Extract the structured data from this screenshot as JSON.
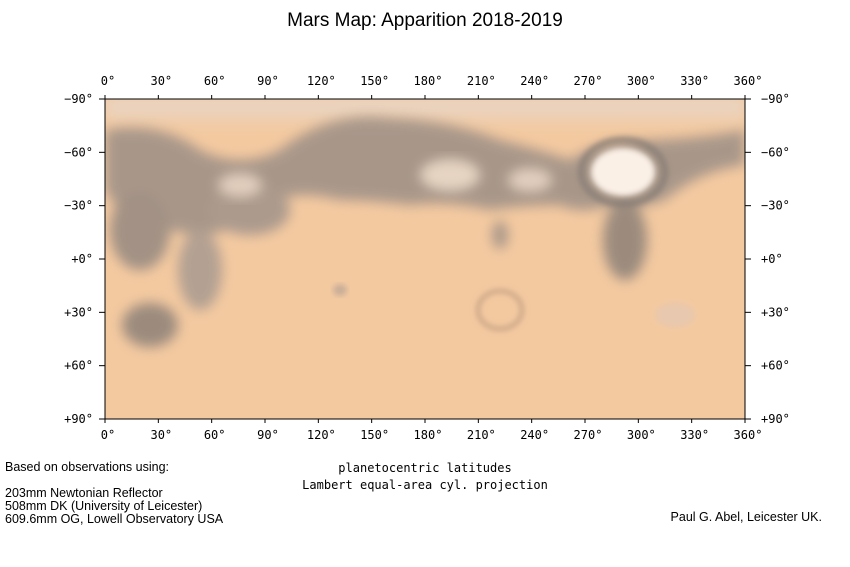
{
  "title": "Mars Map: Apparition 2018-2019",
  "longitude_ticks": [
    "0°",
    "30°",
    "60°",
    "90°",
    "120°",
    "150°",
    "180°",
    "210°",
    "240°",
    "270°",
    "300°",
    "330°",
    "360°"
  ],
  "latitude_ticks": [
    "−90°",
    "−60°",
    "−30°",
    "+0°",
    "+30°",
    "+60°",
    "+90°"
  ],
  "projection": {
    "line1": "planetocentric latitudes",
    "line2": "Lambert equal-area cyl. projection"
  },
  "observations": {
    "heading": "Based on observations using:",
    "instruments": [
      "203mm Newtonian Reflector",
      "508mm DK (University of Leicester)",
      "609.6mm OG, Lowell Observatory USA"
    ]
  },
  "credit": "Paul G. Abel, Leicester UK.",
  "colors": {
    "surface": "#f3c9a0",
    "dark_albedo": "#8d8178",
    "polar_cap": "#fbf0e6"
  }
}
